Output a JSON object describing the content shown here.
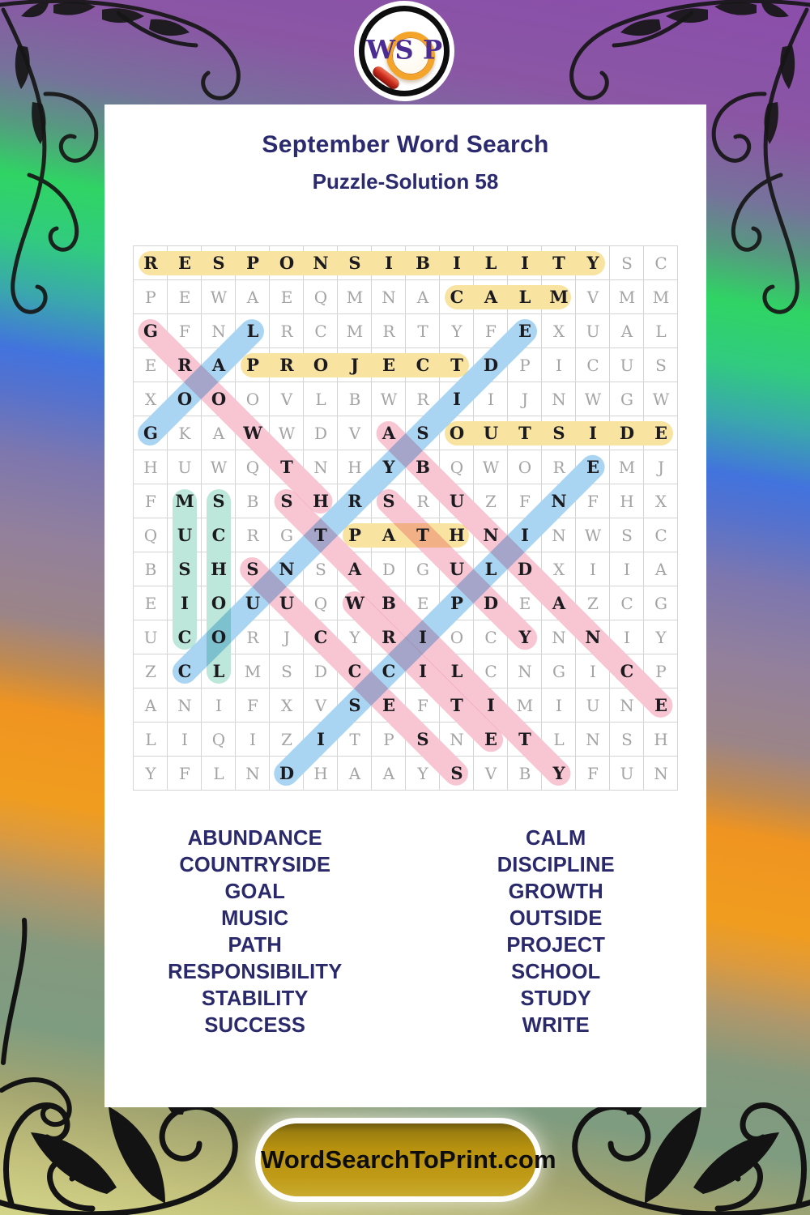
{
  "logo": {
    "letters": [
      "W",
      "S",
      "P"
    ],
    "purple": "#4b2c93",
    "ring_orange": "#f4a428",
    "handle_red": "#c6281a"
  },
  "header": {
    "title": "September Word Search",
    "subtitle": "Puzzle-Solution 58",
    "title_color": "#2b2a6e"
  },
  "grid": {
    "rows": [
      "RESPONSIBILITYSC",
      "PEWAEQMNACALMVMM",
      "GFNLRCMRTYFEXUAL",
      "ERAPROJECTDPICUS",
      "XOOOVLBWRIIJNWGW",
      "GKAWWDVASOUTSIDE",
      "HUWQTNHYBQWOREMJ",
      "FMSBSHRSRUZFNFHX",
      "QUCRGTPATHNINWSC",
      "BSHSNSADGULDXIIA",
      "EIOUUQWBEPDEAZCG",
      "UCORJCYRIOCYNNIY",
      "ZCLMSDCCILCNGICP",
      "ANIFXVSEFTIMIUNE",
      "LIQIZITPSNETLNSH",
      "YFLNDHAAYSVBYFUN"
    ],
    "letter_color_normal": "#a4a4a4",
    "letter_color_solved": "#1b1b1f",
    "line_color": "#d4d4d4"
  },
  "palette": {
    "yellow": "#f8e3a1",
    "teal": "#bce7da",
    "blue": "#a9d5f2",
    "pink": "#f8c6d3"
  },
  "solutions": [
    {
      "word": "RESPONSIBILITY",
      "color": "yellow",
      "start": [
        1,
        1
      ],
      "end": [
        1,
        14
      ]
    },
    {
      "word": "CALM",
      "color": "yellow",
      "start": [
        2,
        10
      ],
      "end": [
        2,
        13
      ]
    },
    {
      "word": "PROJECT",
      "color": "yellow",
      "start": [
        4,
        4
      ],
      "end": [
        4,
        10
      ]
    },
    {
      "word": "OUTSIDE",
      "color": "yellow",
      "start": [
        6,
        10
      ],
      "end": [
        6,
        16
      ]
    },
    {
      "word": "PATH",
      "color": "yellow",
      "start": [
        9,
        7
      ],
      "end": [
        9,
        10
      ]
    },
    {
      "word": "MUSIC",
      "color": "teal",
      "start": [
        8,
        2
      ],
      "end": [
        12,
        2
      ]
    },
    {
      "word": "SCHOOL",
      "color": "teal",
      "start": [
        8,
        3
      ],
      "end": [
        13,
        3
      ]
    },
    {
      "word": "GOAL",
      "color": "blue",
      "start": [
        6,
        1
      ],
      "end": [
        3,
        4
      ]
    },
    {
      "word": "COUNTRYSIDE",
      "color": "blue",
      "start": [
        13,
        2
      ],
      "end": [
        3,
        12
      ]
    },
    {
      "word": "DISCIPLINE",
      "color": "blue",
      "start": [
        16,
        5
      ],
      "end": [
        7,
        14
      ]
    },
    {
      "word": "GROWTH",
      "color": "pink",
      "start": [
        3,
        1
      ],
      "end": [
        8,
        6
      ]
    },
    {
      "word": "STABILITY",
      "color": "pink",
      "start": [
        8,
        5
      ],
      "end": [
        16,
        13
      ]
    },
    {
      "word": "SUCCESS",
      "color": "pink",
      "start": [
        10,
        4
      ],
      "end": [
        16,
        10
      ]
    },
    {
      "word": "WRITE",
      "color": "pink",
      "start": [
        11,
        7
      ],
      "end": [
        15,
        11
      ]
    },
    {
      "word": "STUDY",
      "color": "pink",
      "start": [
        8,
        8
      ],
      "end": [
        12,
        12
      ]
    },
    {
      "word": "ABUNDANCE",
      "color": "pink",
      "start": [
        6,
        8
      ],
      "end": [
        14,
        16
      ]
    }
  ],
  "words": {
    "left": [
      "ABUNDANCE",
      "COUNTRYSIDE",
      "GOAL",
      "MUSIC",
      "PATH",
      "RESPONSIBILITY",
      "STABILITY",
      "SUCCESS"
    ],
    "right": [
      "CALM",
      "DISCIPLINE",
      "GROWTH",
      "OUTSIDE",
      "PROJECT",
      "SCHOOL",
      "STUDY",
      "WRITE"
    ]
  },
  "footer": {
    "brand": "WordSearchToPrint.com",
    "pill_gold": "#b8920f"
  }
}
